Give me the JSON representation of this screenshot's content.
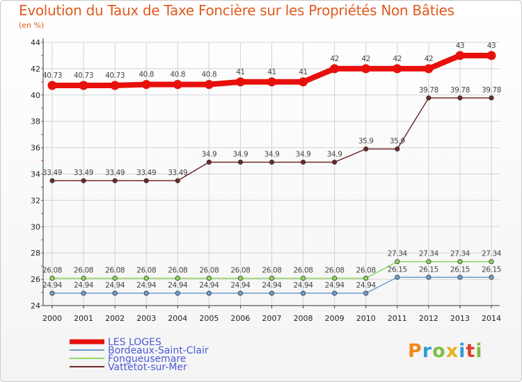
{
  "chart_data": {
    "type": "line",
    "title": "Evolution du Taux de Taxe Foncière sur les Propriétés Non Bâties",
    "ylabel": "(en %)",
    "xlabel": "",
    "x": [
      "2000",
      "2001",
      "2002",
      "2003",
      "2004",
      "2005",
      "2006",
      "2007",
      "2008",
      "2009",
      "2010",
      "2011",
      "2012",
      "2013",
      "2014"
    ],
    "ylim": [
      24,
      44
    ],
    "yticks": [
      24,
      26,
      28,
      30,
      32,
      34,
      36,
      38,
      40,
      42,
      44
    ],
    "grid": true,
    "legend_position": "bottom-left",
    "series": [
      {
        "name": "LES LOGES",
        "color": "#e8100c",
        "emphasis": true,
        "values": [
          40.73,
          40.73,
          40.73,
          40.8,
          40.8,
          40.8,
          41,
          41,
          41,
          42,
          42,
          42,
          42,
          43,
          43
        ],
        "labels": [
          "40.73",
          "40.73",
          "40.73",
          "40.8",
          "40.8",
          "40.8",
          "41",
          "41",
          "41",
          "42",
          "42",
          "42",
          "42",
          "43",
          "43"
        ]
      },
      {
        "name": "Bordeaux-Saint-Clair",
        "color": "#6a9fd0",
        "emphasis": false,
        "values": [
          24.94,
          24.94,
          24.94,
          24.94,
          24.94,
          24.94,
          24.94,
          24.94,
          24.94,
          24.94,
          24.94,
          26.15,
          26.15,
          26.15,
          26.15
        ],
        "labels": [
          "24.94",
          "24.94",
          "24.94",
          "24.94",
          "24.94",
          "24.94",
          "24.94",
          "24.94",
          "24.94",
          "24.94",
          "24.94",
          "26.15",
          "26.15",
          "26.15",
          "26.15"
        ]
      },
      {
        "name": "Fongueusemare",
        "color": "#8cd85e",
        "emphasis": false,
        "values": [
          26.08,
          26.08,
          26.08,
          26.08,
          26.08,
          26.08,
          26.08,
          26.08,
          26.08,
          26.08,
          26.08,
          27.34,
          27.34,
          27.34,
          27.34
        ],
        "labels": [
          "26.08",
          "26.08",
          "26.08",
          "26.08",
          "26.08",
          "26.08",
          "26.08",
          "26.08",
          "26.08",
          "26.08",
          "26.08",
          "27.34",
          "27.34",
          "27.34",
          "27.34"
        ]
      },
      {
        "name": "Vattetot-sur-Mer",
        "color": "#6e2a2a",
        "emphasis": false,
        "values": [
          33.49,
          33.49,
          33.49,
          33.49,
          33.49,
          34.9,
          34.9,
          34.9,
          34.9,
          34.9,
          35.9,
          35.9,
          39.78,
          39.78,
          39.78
        ],
        "labels": [
          "33.49",
          "33.49",
          "33.49",
          "33.49",
          "33.49",
          "34.9",
          "34.9",
          "34.9",
          "34.9",
          "34.9",
          "35.9",
          "35.9",
          "39.78",
          "39.78",
          "39.78"
        ]
      }
    ]
  },
  "header": {
    "title": "Evolution du Taux de Taxe Foncière sur les Propriétés Non Bâties",
    "unit": "(en %)"
  },
  "brand": {
    "letters": [
      "P",
      "r",
      "o",
      "x",
      "i",
      "t",
      "i"
    ],
    "colors": [
      "#f08a1c",
      "#2f9cd8",
      "#7bc043",
      "#e8b21c",
      "#2f9cd8",
      "#e0412b",
      "#7bc043"
    ]
  }
}
